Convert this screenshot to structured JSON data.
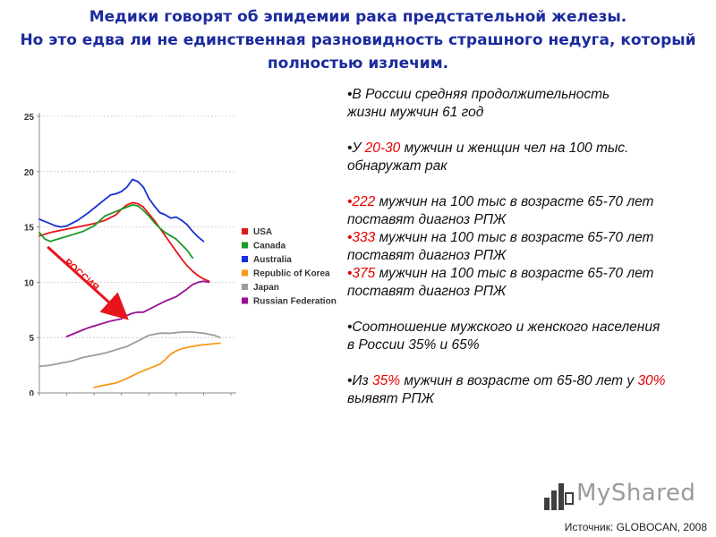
{
  "title": {
    "line1": "Медики говорят об эпидемии рака предстательной железы.",
    "line2": "Но это едва ли не единственная разновидность страшного недуга, который",
    "line3": "полностью излечим."
  },
  "bullets": {
    "b1_l1": "•В России средняя продолжительность",
    "b1_l2": "жизни мужчин 61 год",
    "b2_pre": "•У ",
    "b2_hl": "20-30",
    "b2_post": " мужчин и женщин чел на 100 тыс.",
    "b2_l2": "обнаружат рак",
    "b3_hl": "•222",
    "b3_post": " мужчин на 100 тыс в возрасте 65-70 лет",
    "b3_l2": "поставят диагноз РПЖ",
    "b4_hl": "•333",
    "b4_post": " мужчин на 100 тыс в возрасте 65-70 лет",
    "b4_l2": "поставят диагноз РПЖ",
    "b5_hl": "•375",
    "b5_post": " мужчин  на 100 тыс в возрасте 65-70 лет",
    "b5_l2": "поставят диагноз РПЖ",
    "b6_l1": "•Соотношение мужского и женского населения",
    "b6_l2": "в России 35% и 65%",
    "b7_pre": "•Из ",
    "b7_hl1": "35%",
    "b7_mid": " мужчин в возрасте от 65-80 лет у ",
    "b7_hl2": "30%",
    "b7_l2": "выявят РПЖ"
  },
  "logo": {
    "text": "MyShared"
  },
  "source": "Источник: GLOBOCAN, 2008",
  "chart_data": {
    "type": "line",
    "xlim": [
      1975,
      2010
    ],
    "ylim": [
      0,
      25
    ],
    "xticks": [
      1975,
      1980,
      1985,
      1990,
      1995,
      2000,
      2005,
      2010
    ],
    "yticks": [
      0,
      5,
      10,
      15,
      20,
      25
    ],
    "grid": true,
    "legend_placement": "right",
    "annotation": "РОССИЯ",
    "colors": {
      "USA": "#e8141c",
      "Canada": "#1a9a24",
      "Australia": "#1530d6",
      "Republic of Korea": "#f59a16",
      "Japan": "#9c9c9c",
      "Russian Federation": "#9a0f96"
    },
    "series": [
      {
        "name": "USA",
        "x": [
          1975,
          1977,
          1979,
          1981,
          1983,
          1985,
          1987,
          1989,
          1990,
          1991,
          1992,
          1993,
          1994,
          1995,
          1996,
          1997,
          1998,
          1999,
          2000,
          2001,
          2002,
          2003,
          2004,
          2005,
          2006
        ],
        "y": [
          14.2,
          14.5,
          14.7,
          14.9,
          15.1,
          15.3,
          15.6,
          16.1,
          16.6,
          17.0,
          17.2,
          17.1,
          16.8,
          16.2,
          15.6,
          14.9,
          14.2,
          13.5,
          12.8,
          12.1,
          11.5,
          11.0,
          10.6,
          10.3,
          10.1
        ]
      },
      {
        "name": "Canada",
        "x": [
          1975,
          1976,
          1977,
          1979,
          1981,
          1983,
          1985,
          1987,
          1989,
          1990,
          1991,
          1992,
          1993,
          1994,
          1995,
          1996,
          1997,
          1998,
          2000,
          2002,
          2003
        ],
        "y": [
          14.5,
          13.9,
          13.7,
          14.0,
          14.3,
          14.6,
          15.1,
          16.0,
          16.4,
          16.6,
          16.8,
          17.0,
          16.9,
          16.5,
          16.0,
          15.4,
          14.9,
          14.5,
          13.9,
          12.9,
          12.2
        ]
      },
      {
        "name": "Australia",
        "x": [
          1975,
          1976,
          1977,
          1978,
          1979,
          1980,
          1982,
          1984,
          1986,
          1988,
          1989,
          1990,
          1991,
          1992,
          1993,
          1994,
          1995,
          1996,
          1997,
          1998,
          1999,
          2000,
          2001,
          2002,
          2003,
          2004,
          2005
        ],
        "y": [
          15.7,
          15.5,
          15.3,
          15.1,
          15.0,
          15.1,
          15.6,
          16.3,
          17.1,
          17.9,
          18.0,
          18.2,
          18.6,
          19.3,
          19.1,
          18.6,
          17.6,
          16.9,
          16.3,
          16.1,
          15.8,
          15.9,
          15.6,
          15.2,
          14.6,
          14.1,
          13.7
        ]
      },
      {
        "name": "Republic of Korea",
        "x": [
          1985,
          1987,
          1989,
          1991,
          1993,
          1995,
          1997,
          1998,
          1999,
          2000,
          2001,
          2002,
          2004,
          2006,
          2008
        ],
        "y": [
          0.5,
          0.7,
          0.9,
          1.3,
          1.8,
          2.2,
          2.6,
          3.0,
          3.5,
          3.8,
          4.0,
          4.1,
          4.3,
          4.4,
          4.5
        ]
      },
      {
        "name": "Japan",
        "x": [
          1975,
          1977,
          1979,
          1981,
          1983,
          1985,
          1987,
          1989,
          1991,
          1993,
          1995,
          1996,
          1997,
          1999,
          2001,
          2003,
          2005,
          2007,
          2008
        ],
        "y": [
          2.4,
          2.5,
          2.7,
          2.9,
          3.2,
          3.4,
          3.6,
          3.9,
          4.2,
          4.7,
          5.2,
          5.3,
          5.4,
          5.4,
          5.5,
          5.5,
          5.4,
          5.2,
          5.0
        ]
      },
      {
        "name": "Russian Federation",
        "x": [
          1980,
          1982,
          1984,
          1986,
          1988,
          1990,
          1991,
          1992,
          1993,
          1994,
          1996,
          1998,
          2000,
          2002,
          2003,
          2004,
          2005,
          2006
        ],
        "y": [
          5.1,
          5.5,
          5.9,
          6.2,
          6.5,
          6.7,
          7.0,
          7.2,
          7.3,
          7.3,
          7.8,
          8.3,
          8.7,
          9.4,
          9.8,
          10.0,
          10.1,
          10.0
        ]
      }
    ]
  }
}
